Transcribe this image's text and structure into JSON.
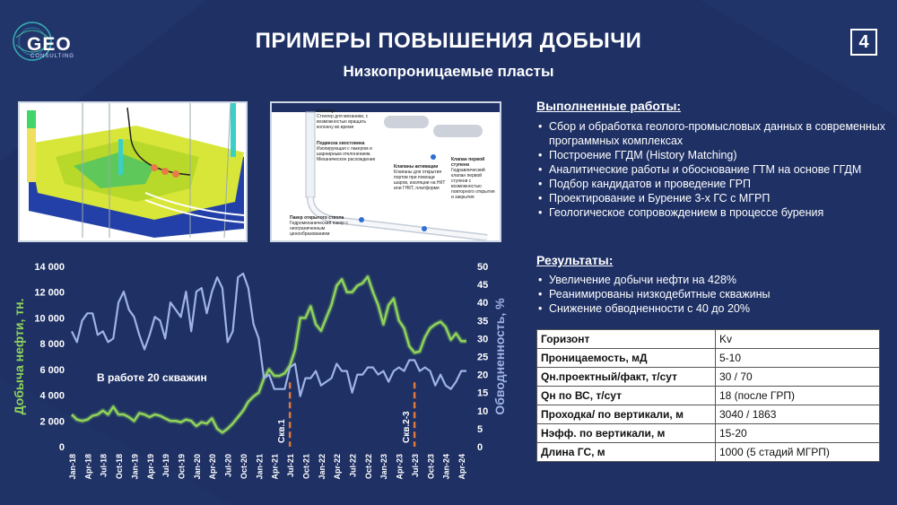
{
  "header": {
    "logo_text": "GEO",
    "logo_sub": "CONSULTING",
    "title": "ПРИМЕРЫ ПОВЫШЕНИЯ ДОБЫЧИ",
    "page_number": "4",
    "subtitle": "Низкопроницаемые пласты"
  },
  "schematic": {
    "labels": [
      {
        "title": "Стингер",
        "text": "Стингер для механики, с возможностью вращать колонну во время"
      },
      {
        "title": "Подвеска хвостовика",
        "text": "Изолирующая с пакером и шарнирным отклонением. Механическое расхождение"
      },
      {
        "title": "Клапаны активации",
        "text": "Клапаны для открытия портов при помощи шаров, изоляции на НКТ или ГНКТ, платформе"
      },
      {
        "title": "Клапан первой ступени",
        "text": "Гидравлический клапан первой ступени с возможностью повторного открытия и закрытия"
      },
      {
        "title": "Пакер открытого ствола",
        "text": "Гидромеханический пакер с неограниченным ценообразованием"
      }
    ]
  },
  "works": {
    "heading": "Выполненные работы:",
    "items": [
      "Сбор и обработка геолого-промысловых данных в современных программных комплексах",
      "Построение ГГДМ (History Matching)",
      "Аналитические работы и обоснование ГТМ на основе ГГДМ",
      "Подбор кандидатов и проведение ГРП",
      "Проектирование и Бурение 3-х ГС с МГРП",
      "Геологическое сопровождением в процессе бурения"
    ]
  },
  "results": {
    "heading": "Результаты:",
    "items": [
      "Увеличение добычи нефти на 428%",
      "Реанимированы низкодебитные скважины",
      "Снижение обводненности с 40 до 20%"
    ]
  },
  "params_table": [
    {
      "key": "Горизонт",
      "value": "Kv"
    },
    {
      "key": "Проницаемость, мД",
      "value": "5-10"
    },
    {
      "key": "Qн.проектный/факт, т/сут",
      "value": "30 / 70"
    },
    {
      "key": "Qн по ВС, т/сут",
      "value": "18 (после ГРП)"
    },
    {
      "key": "Проходка/ по вертикали, м",
      "value": "3040 / 1863"
    },
    {
      "key": "Нэфф. по вертикали, м",
      "value": "15-20"
    },
    {
      "key": "Длина ГС, м",
      "value": "1000 (5 стадий МГРП)"
    }
  ],
  "colors": {
    "background": "#1e3064",
    "oil_series": "#8fd35a",
    "water_series": "#9fb4e6",
    "marker": "#e07a3a"
  },
  "chart_data": {
    "type": "line",
    "ylabel_left": "Добыча нефти, тн.",
    "ylabel_right": "Обводненность, %",
    "ylim_left": [
      0,
      14000
    ],
    "ylim_right": [
      0,
      50
    ],
    "yticks_left": [
      "0",
      "2 000",
      "4 000",
      "6 000",
      "8 000",
      "10 000",
      "12 000",
      "14 000"
    ],
    "yticks_right": [
      "0",
      "5",
      "10",
      "15",
      "20",
      "25",
      "30",
      "35",
      "40",
      "45",
      "50"
    ],
    "x_labels": [
      "Jan-18",
      "Apr-18",
      "Jul-18",
      "Oct-18",
      "Jan-19",
      "Apr-19",
      "Jul-19",
      "Oct-19",
      "Jan-20",
      "Apr-20",
      "Jul-20",
      "Oct-20",
      "Jan-21",
      "Apr-21",
      "Jul-21",
      "Oct-21",
      "Jan-22",
      "Apr-22",
      "Jul-22",
      "Oct-22",
      "Jan-23",
      "Apr-23",
      "Jul-23",
      "Oct-23",
      "Jan-24",
      "Apr-24"
    ],
    "annotation": "В работе 20 скважин",
    "markers": [
      {
        "label": "Скв.1",
        "x_index": 42
      },
      {
        "label": "Скв.2-3",
        "x_index": 66
      }
    ],
    "series": [
      {
        "name": "Добыча нефти, тн.",
        "axis": "left",
        "values": [
          2500,
          2100,
          2000,
          2100,
          2400,
          2500,
          2800,
          2500,
          3100,
          2500,
          2500,
          2300,
          2000,
          2600,
          2500,
          2300,
          2500,
          2400,
          2200,
          2000,
          2000,
          1900,
          2100,
          2000,
          1600,
          1900,
          1800,
          2200,
          1400,
          1100,
          1400,
          1800,
          2300,
          2800,
          3500,
          3900,
          4200,
          5300,
          6000,
          5500,
          5500,
          5700,
          6300,
          7500,
          10000,
          10000,
          10900,
          9500,
          9000,
          10000,
          11000,
          12500,
          13000,
          12000,
          12000,
          12500,
          12700,
          13200,
          12000,
          11000,
          9500,
          11000,
          11500,
          9800,
          9200,
          7800,
          7300,
          7400,
          8500,
          9200,
          9500,
          9700,
          9300,
          8300,
          8800,
          8200,
          8200
        ]
      },
      {
        "name": "Обводненность, %",
        "axis": "right",
        "values": [
          32,
          29,
          35,
          37,
          37,
          31,
          32,
          29,
          30,
          40,
          43,
          38,
          36,
          31,
          27,
          31,
          36,
          35,
          30,
          40,
          38,
          36,
          43,
          32,
          43,
          44,
          37,
          43,
          47,
          44,
          29,
          32,
          47,
          48,
          44,
          34,
          30,
          19,
          20,
          16,
          16,
          16,
          22,
          23,
          14,
          19,
          19,
          21,
          17,
          18,
          19,
          23,
          21,
          21,
          15,
          20,
          20,
          22,
          22,
          20,
          21,
          18,
          21,
          22,
          21,
          24,
          24,
          21,
          22,
          21,
          17,
          20,
          17,
          16,
          18,
          21,
          21
        ]
      }
    ]
  }
}
